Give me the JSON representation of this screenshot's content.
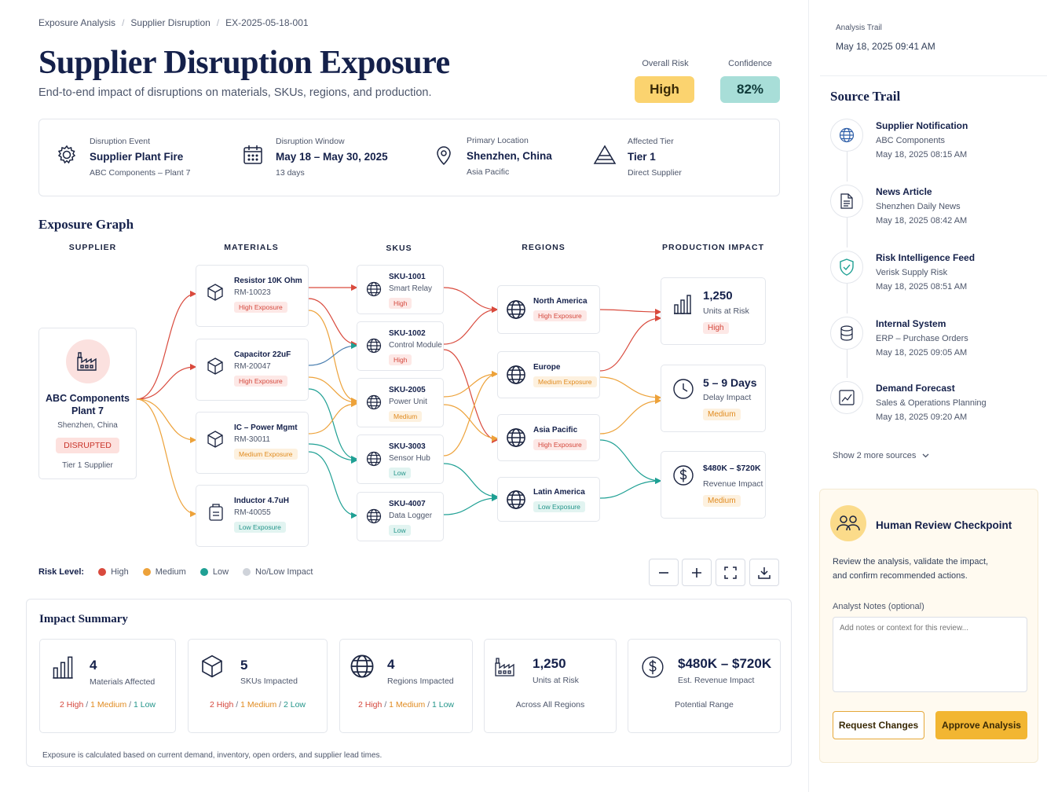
{
  "breadcrumb": [
    "Exposure Analysis",
    "Supplier Disruption",
    "EX-2025-05-18-001"
  ],
  "header": {
    "title": "Supplier Disruption Exposure",
    "subtitle": "End-to-end impact of disruptions on materials, SKUs, regions, and production.",
    "overall_risk_label": "Overall Risk",
    "overall_risk_value": "High",
    "confidence_label": "Confidence",
    "confidence_value": "82%"
  },
  "event": [
    {
      "label": "Disruption Event",
      "value": "Supplier Plant Fire",
      "sub": "ABC Components – Plant 7",
      "icon": "gear-icon"
    },
    {
      "label": "Disruption Window",
      "value": "May 18 – May 30, 2025",
      "sub": "13 days",
      "icon": "calendar-icon"
    },
    {
      "label": "Primary Location",
      "value": "Shenzhen, China",
      "sub": "Asia Pacific",
      "icon": "location-pin-icon"
    },
    {
      "label": "Affected Tier",
      "value": "Tier 1",
      "sub": "Direct Supplier",
      "icon": "tier-pyramid-icon"
    }
  ],
  "graph": {
    "title": "Exposure Graph",
    "columns": [
      "SUPPLIER",
      "MATERIALS",
      "SKUS",
      "REGIONS",
      "PRODUCTION IMPACT"
    ],
    "supplier": {
      "name_line1": "ABC Components",
      "name_line2": "Plant 7",
      "location": "Shenzhen, China",
      "status": "DISRUPTED",
      "tier": "Tier 1 Supplier"
    },
    "materials": [
      {
        "name": "Resistor 10K Ohm",
        "code": "RM-10023",
        "tag": "High Exposure",
        "level": "high"
      },
      {
        "name": "Capacitor 22uF",
        "code": "RM-20047",
        "tag": "High Exposure",
        "level": "high"
      },
      {
        "name": "IC – Power Mgmt",
        "code": "RM-30011",
        "tag": "Medium Exposure",
        "level": "med"
      },
      {
        "name": "Inductor 4.7uH",
        "code": "RM-40055",
        "tag": "Low Exposure",
        "level": "low"
      }
    ],
    "skus": [
      {
        "code": "SKU-1001",
        "name": "Smart Relay",
        "tag": "High",
        "level": "high"
      },
      {
        "code": "SKU-1002",
        "name": "Control Module",
        "tag": "High",
        "level": "high"
      },
      {
        "code": "SKU-2005",
        "name": "Power Unit",
        "tag": "Medium",
        "level": "med"
      },
      {
        "code": "SKU-3003",
        "name": "Sensor Hub",
        "tag": "Low",
        "level": "low"
      },
      {
        "code": "SKU-4007",
        "name": "Data Logger",
        "tag": "Low",
        "level": "low"
      }
    ],
    "regions": [
      {
        "name": "North America",
        "tag": "High Exposure",
        "level": "high"
      },
      {
        "name": "Europe",
        "tag": "Medium Exposure",
        "level": "med"
      },
      {
        "name": "Asia Pacific",
        "tag": "High Exposure",
        "level": "high"
      },
      {
        "name": "Latin America",
        "tag": "Low Exposure",
        "level": "low"
      }
    ],
    "production": [
      {
        "value": "1,250",
        "label": "Units at Risk",
        "tag": "High",
        "level": "high"
      },
      {
        "value": "5 – 9 Days",
        "label": "Delay Impact",
        "tag": "Medium",
        "level": "med"
      },
      {
        "value": "$480K – $720K",
        "label": "Revenue Impact",
        "tag": "Medium",
        "level": "med"
      }
    ]
  },
  "legend": {
    "label": "Risk Level:",
    "items": [
      "High",
      "Medium",
      "Low",
      "No/Low Impact"
    ]
  },
  "colors": {
    "high": "#d94a3d",
    "medium": "#eda23a",
    "low": "#1fa094",
    "none": "#cfd3da",
    "accent": "#f2b632"
  },
  "impact": {
    "title": "Impact Summary",
    "cards": [
      {
        "value": "4",
        "label": "Materials Affected",
        "high": "2 High",
        "med": "1 Medium",
        "low": "1 Low"
      },
      {
        "value": "5",
        "label": "SKUs Impacted",
        "high": "2 High",
        "med": "1 Medium",
        "low": "2 Low"
      },
      {
        "value": "4",
        "label": "Regions Impacted",
        "high": "2 High",
        "med": "1 Medium",
        "low": "1 Low"
      },
      {
        "value": "1,250",
        "label": "Units at Risk",
        "note": "Across All Regions"
      },
      {
        "value": "$480K – $720K",
        "label": "Est. Revenue Impact",
        "note": "Potential Range"
      }
    ],
    "footnote": "Exposure is calculated based on current demand, inventory, open orders, and supplier lead times."
  },
  "trail": {
    "label": "Analysis Trail",
    "timestamp": "May 18, 2025 09:41 AM",
    "source_title": "Source Trail",
    "sources": [
      {
        "title": "Supplier Notification",
        "sub": "ABC Components",
        "date": "May 18, 2025 08:15 AM"
      },
      {
        "title": "News Article",
        "sub": "Shenzhen Daily News",
        "date": "May 18, 2025 08:42 AM"
      },
      {
        "title": "Risk Intelligence Feed",
        "sub": "Verisk Supply Risk",
        "date": "May 18, 2025 08:51 AM"
      },
      {
        "title": "Internal System",
        "sub": "ERP – Purchase Orders",
        "date": "May 18, 2025 09:05 AM"
      },
      {
        "title": "Demand Forecast",
        "sub": "Sales & Operations Planning",
        "date": "May 18, 2025 09:20 AM"
      }
    ],
    "show_more": "Show 2 more sources"
  },
  "review": {
    "title": "Human Review Checkpoint",
    "desc1": "Review the analysis, validate the impact,",
    "desc2": "and confirm recommended actions.",
    "notes_label": "Analyst Notes (optional)",
    "notes_placeholder": "Add notes or context for this review...",
    "request_label": "Request Changes",
    "approve_label": "Approve Analysis"
  }
}
